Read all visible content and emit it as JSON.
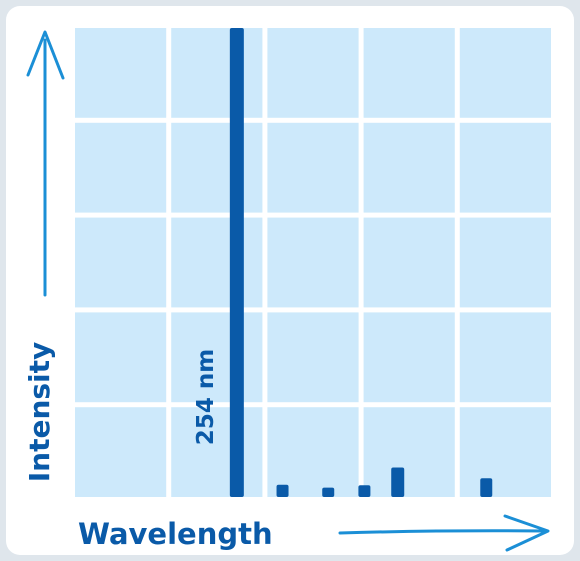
{
  "chart_data": {
    "type": "bar",
    "xlabel": "Wavelength",
    "ylabel": "Intensity",
    "annotation": "254 nm",
    "ylim": [
      0,
      100
    ],
    "grid": true,
    "bars": [
      {
        "x": 1.7,
        "value": 100
      },
      {
        "x": 2.18,
        "value": 2.6
      },
      {
        "x": 2.66,
        "value": 2.0
      },
      {
        "x": 3.04,
        "value": 2.5
      },
      {
        "x": 3.39,
        "value": 6.3
      },
      {
        "x": 4.32,
        "value": 4.0
      }
    ],
    "colors": {
      "bar": "#0a5aa8",
      "grid_cell": "#cde9fb",
      "axis_arrow": "#1b8fd6",
      "text": "#0a5aa8"
    }
  }
}
